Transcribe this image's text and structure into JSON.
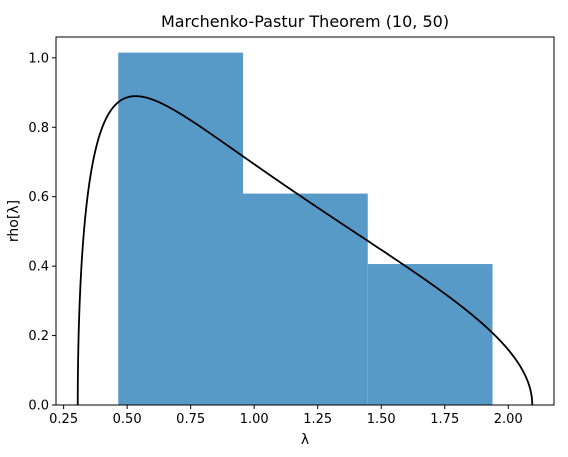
{
  "chart_data": {
    "type": "bar",
    "title": "Marchenko-Pastur Theorem (10, 50)",
    "xlabel": "λ",
    "ylabel": "rho[λ]",
    "xlim": [
      0.22,
      2.18
    ],
    "ylim": [
      0.0,
      1.06
    ],
    "xticks": [
      "0.25",
      "0.50",
      "0.75",
      "1.00",
      "1.25",
      "1.50",
      "1.75",
      "2.00"
    ],
    "yticks": [
      "0.0",
      "0.2",
      "0.4",
      "0.6",
      "0.8",
      "1.0"
    ],
    "grid": false,
    "bar_color": "#5799c7",
    "curve_color": "#000000",
    "histogram": [
      {
        "x0": 0.465,
        "x1": 0.956,
        "value": 1.015
      },
      {
        "x0": 0.956,
        "x1": 1.447,
        "value": 0.609
      },
      {
        "x0": 1.447,
        "x1": 1.938,
        "value": 0.406
      }
    ],
    "curve": {
      "name": "Marchenko-Pastur density",
      "ratio": 0.2,
      "sigma_squared": 1.0,
      "lambda_min": 0.3056,
      "lambda_max": 2.0944
    }
  }
}
